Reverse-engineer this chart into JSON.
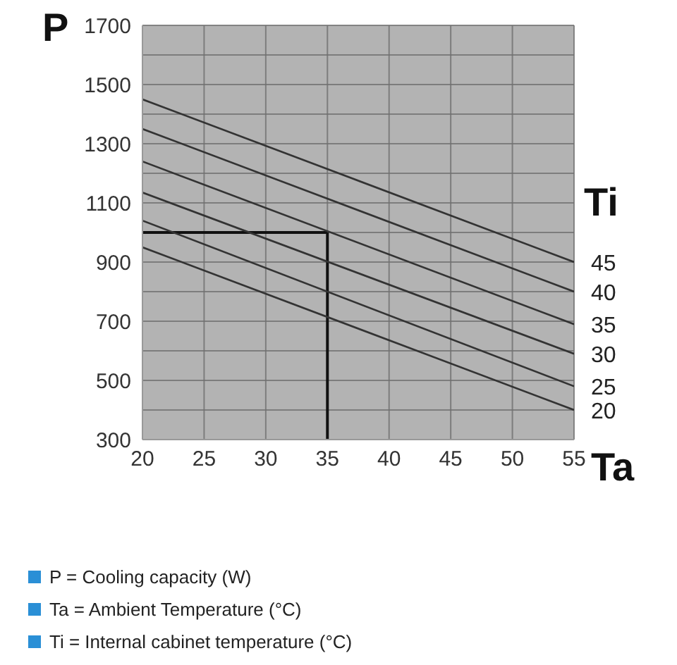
{
  "chart_data": {
    "type": "line",
    "xlabel": "Ta",
    "ylabel": "P",
    "legend_title": "Ti",
    "x": [
      20,
      55
    ],
    "series": [
      {
        "name": "45",
        "color": "#333333",
        "values": [
          1450,
          900
        ]
      },
      {
        "name": "40",
        "color": "#333333",
        "values": [
          1350,
          800
        ]
      },
      {
        "name": "35",
        "color": "#333333",
        "values": [
          1240,
          690
        ]
      },
      {
        "name": "30",
        "color": "#333333",
        "values": [
          1135,
          590
        ]
      },
      {
        "name": "25",
        "color": "#333333",
        "values": [
          1040,
          480
        ]
      },
      {
        "name": "20",
        "color": "#333333",
        "values": [
          950,
          400
        ]
      }
    ],
    "xlim": [
      20,
      55
    ],
    "xticks": [
      20,
      25,
      30,
      35,
      40,
      45,
      50,
      55
    ],
    "ylim": [
      300,
      1700
    ],
    "yticks": [
      300,
      {
        "value": 400,
        "label": null
      },
      500,
      {
        "value": 600,
        "label": null
      },
      700,
      {
        "value": 800,
        "label": null
      },
      900,
      {
        "value": 1000,
        "label": null
      },
      1100,
      {
        "value": 1200,
        "label": null
      },
      1300,
      {
        "value": 1400,
        "label": null
      },
      1500,
      {
        "value": 1600,
        "label": null
      },
      1700
    ],
    "grid": true,
    "marker": "none",
    "line_style": "solid",
    "ref_lines": [
      {
        "axis": "x",
        "value": 35,
        "color": "#111111"
      },
      {
        "axis": "y",
        "value": 1000,
        "color": "#111111"
      }
    ],
    "annotations": [
      "P = Cooling capacity (W)",
      "Ta = Ambient Temperature (°C)",
      "Ti = Internal cabinet temperature (°C)"
    ]
  }
}
